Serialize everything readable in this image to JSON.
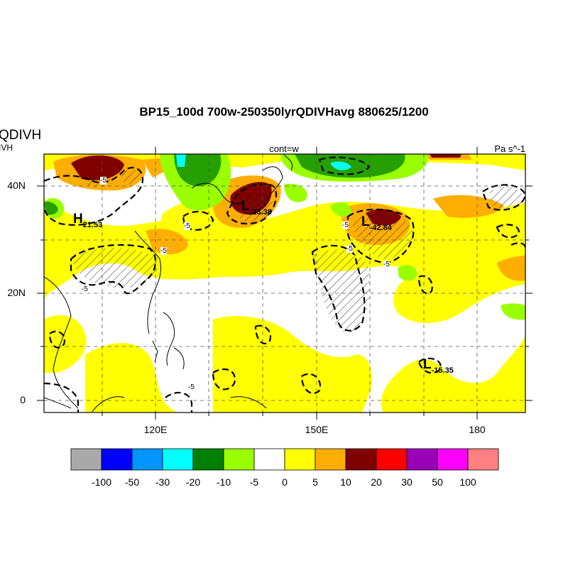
{
  "header": {
    "title": "BP15_100d 700w-250350lyrQDIVHavg  880625/1200",
    "left_title": "QDIVH",
    "left_subtitle": "IVH",
    "center_string": "cont=w",
    "units": "Pa s^-1"
  },
  "axes": {
    "y_labels": [
      "40N",
      "20N",
      "0"
    ],
    "x_labels": [
      "120E",
      "150E",
      "180"
    ]
  },
  "annotations": {
    "h1": {
      "letter": "H",
      "value": "21.53"
    },
    "l1": {
      "letter": "L",
      "value": "-23.38"
    },
    "l2": {
      "letter": "L",
      "value": "-42.84"
    },
    "l3": {
      "letter": "L",
      "value": "-15.35"
    },
    "contour_label": "-5"
  },
  "colorbar": {
    "colors": [
      "#a9a9a9",
      "#0000ff",
      "#0095ff",
      "#00ffff",
      "#008000",
      "#99ff00",
      "#ffffff",
      "#ffff00",
      "#ffae00",
      "#800000",
      "#ff0000",
      "#9900b8",
      "#ff00ff",
      "#ff8080"
    ],
    "labels": [
      "-100",
      "-50",
      "-30",
      "-20",
      "-10",
      "-5",
      "0",
      "5",
      "10",
      "20",
      "30",
      "50",
      "100"
    ]
  }
}
